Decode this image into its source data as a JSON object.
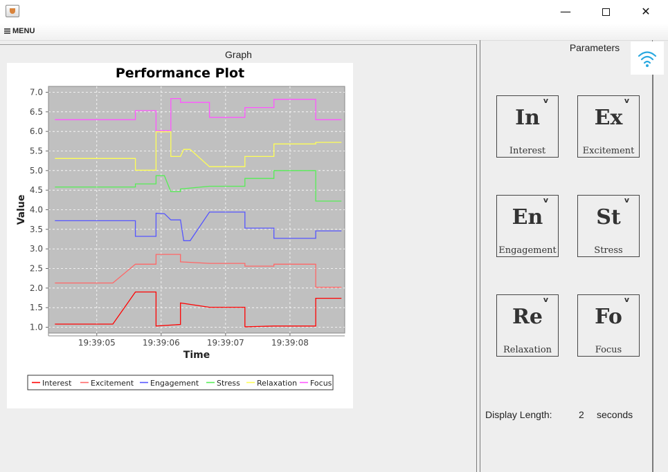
{
  "window": {
    "minimize_glyph": "—",
    "close_glyph": "✕"
  },
  "menu": {
    "label": "MENU"
  },
  "graph_panel": {
    "title": "Graph"
  },
  "parameters_panel": {
    "title": "Parameters",
    "tiles": [
      {
        "abbr": "In",
        "label": "Interest",
        "caret": "v"
      },
      {
        "abbr": "Ex",
        "label": "Excitement",
        "caret": "v"
      },
      {
        "abbr": "En",
        "label": "Engagement",
        "caret": "v"
      },
      {
        "abbr": "St",
        "label": "Stress",
        "caret": "v"
      },
      {
        "abbr": "Re",
        "label": "Relaxation",
        "caret": "v"
      },
      {
        "abbr": "Fo",
        "label": "Focus",
        "caret": "v"
      }
    ],
    "display_length": {
      "label": "Display Length:",
      "value": "2",
      "unit": "seconds"
    }
  },
  "icons": {
    "app": "java-app-icon",
    "wifi": "wifi-icon",
    "menu": "hamburger-icon"
  },
  "colors": {
    "plot_bg": "#c0c0c0",
    "wifi": "#29a8e0"
  },
  "chart_data": {
    "type": "line",
    "title": "Performance Plot",
    "xlabel": "Time",
    "ylabel": "Value",
    "xlim": [
      4.25,
      8.85
    ],
    "ylim": [
      0.85,
      7.15
    ],
    "x_ticks": [
      {
        "value": 5.0,
        "label": "19:39:05"
      },
      {
        "value": 6.0,
        "label": "19:39:06"
      },
      {
        "value": 7.0,
        "label": "19:39:07"
      },
      {
        "value": 8.0,
        "label": "19:39:08"
      }
    ],
    "y_ticks": [
      "1.0",
      "1.5",
      "2.0",
      "2.5",
      "3.0",
      "3.5",
      "4.0",
      "4.5",
      "5.0",
      "5.5",
      "6.0",
      "6.5",
      "7.0"
    ],
    "grid": true,
    "legend_position": "bottom",
    "series": [
      {
        "name": "Interest",
        "color": "#ff0000",
        "points": [
          [
            4.35,
            1.08
          ],
          [
            5.25,
            1.08
          ],
          [
            5.6,
            1.9
          ],
          [
            5.92,
            1.9
          ],
          [
            5.92,
            1.03
          ],
          [
            6.3,
            1.07
          ],
          [
            6.3,
            1.62
          ],
          [
            6.75,
            1.51
          ],
          [
            7.3,
            1.51
          ],
          [
            7.3,
            1.01
          ],
          [
            7.75,
            1.03
          ],
          [
            8.4,
            1.03
          ],
          [
            8.4,
            1.74
          ],
          [
            8.8,
            1.74
          ]
        ]
      },
      {
        "name": "Excitement",
        "color": "#ff6666",
        "points": [
          [
            4.35,
            2.13
          ],
          [
            5.25,
            2.13
          ],
          [
            5.6,
            2.61
          ],
          [
            5.92,
            2.61
          ],
          [
            5.92,
            2.86
          ],
          [
            6.3,
            2.86
          ],
          [
            6.3,
            2.67
          ],
          [
            6.75,
            2.63
          ],
          [
            7.3,
            2.63
          ],
          [
            7.3,
            2.56
          ],
          [
            7.75,
            2.56
          ],
          [
            7.75,
            2.61
          ],
          [
            8.4,
            2.61
          ],
          [
            8.4,
            2.02
          ],
          [
            8.8,
            2.02
          ]
        ]
      },
      {
        "name": "Engagement",
        "color": "#5555ff",
        "points": [
          [
            4.35,
            3.72
          ],
          [
            5.6,
            3.72
          ],
          [
            5.6,
            3.32
          ],
          [
            5.92,
            3.32
          ],
          [
            5.92,
            3.91
          ],
          [
            6.05,
            3.9
          ],
          [
            6.15,
            3.74
          ],
          [
            6.3,
            3.74
          ],
          [
            6.35,
            3.21
          ],
          [
            6.45,
            3.21
          ],
          [
            6.75,
            3.94
          ],
          [
            7.3,
            3.94
          ],
          [
            7.3,
            3.53
          ],
          [
            7.75,
            3.53
          ],
          [
            7.75,
            3.27
          ],
          [
            8.4,
            3.27
          ],
          [
            8.4,
            3.46
          ],
          [
            8.8,
            3.46
          ]
        ]
      },
      {
        "name": "Stress",
        "color": "#55ee55",
        "points": [
          [
            4.35,
            4.58
          ],
          [
            5.6,
            4.58
          ],
          [
            5.6,
            4.66
          ],
          [
            5.92,
            4.66
          ],
          [
            5.92,
            4.87
          ],
          [
            6.05,
            4.87
          ],
          [
            6.15,
            4.46
          ],
          [
            6.3,
            4.46
          ],
          [
            6.3,
            4.53
          ],
          [
            6.75,
            4.6
          ],
          [
            7.3,
            4.6
          ],
          [
            7.3,
            4.8
          ],
          [
            7.75,
            4.8
          ],
          [
            7.75,
            5.0
          ],
          [
            8.4,
            5.0
          ],
          [
            8.4,
            4.22
          ],
          [
            8.8,
            4.22
          ]
        ]
      },
      {
        "name": "Relaxation",
        "color": "#ffff55",
        "points": [
          [
            4.35,
            5.31
          ],
          [
            5.6,
            5.31
          ],
          [
            5.6,
            5.01
          ],
          [
            5.92,
            5.01
          ],
          [
            5.92,
            5.99
          ],
          [
            6.15,
            5.99
          ],
          [
            6.15,
            5.36
          ],
          [
            6.3,
            5.36
          ],
          [
            6.35,
            5.54
          ],
          [
            6.45,
            5.54
          ],
          [
            6.75,
            5.1
          ],
          [
            7.3,
            5.1
          ],
          [
            7.3,
            5.36
          ],
          [
            7.75,
            5.36
          ],
          [
            7.75,
            5.68
          ],
          [
            8.4,
            5.68
          ],
          [
            8.4,
            5.72
          ],
          [
            8.8,
            5.72
          ]
        ]
      },
      {
        "name": "Focus",
        "color": "#ff55ff",
        "points": [
          [
            4.35,
            6.3
          ],
          [
            5.6,
            6.3
          ],
          [
            5.6,
            6.53
          ],
          [
            5.92,
            6.53
          ],
          [
            5.92,
            6.02
          ],
          [
            6.15,
            6.02
          ],
          [
            6.15,
            6.84
          ],
          [
            6.3,
            6.84
          ],
          [
            6.3,
            6.74
          ],
          [
            6.75,
            6.74
          ],
          [
            6.75,
            6.36
          ],
          [
            7.3,
            6.36
          ],
          [
            7.3,
            6.61
          ],
          [
            7.75,
            6.61
          ],
          [
            7.75,
            6.82
          ],
          [
            8.4,
            6.82
          ],
          [
            8.4,
            6.3
          ],
          [
            8.8,
            6.3
          ]
        ]
      }
    ]
  }
}
